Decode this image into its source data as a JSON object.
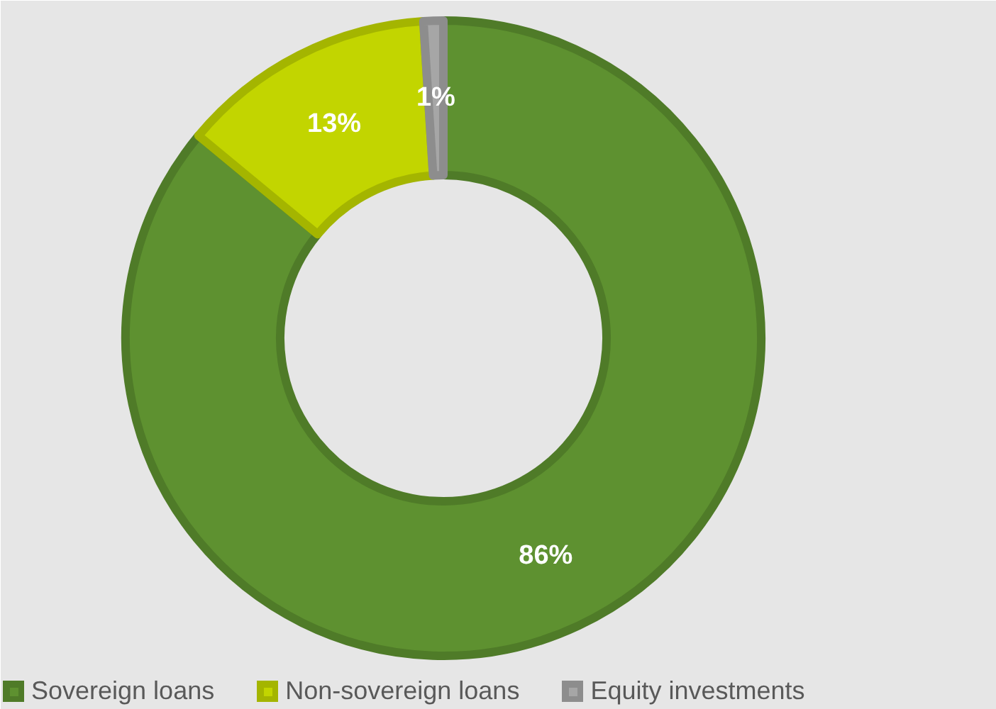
{
  "chart_data": {
    "type": "donut",
    "categories": [
      "Sovereign loans",
      "Non-sovereign loans",
      "Equity investments"
    ],
    "values": [
      86,
      13,
      1
    ],
    "colors": [
      "#5e9130",
      "#c2d500",
      "#a6a6a6"
    ],
    "value_labels": [
      "86%",
      "13%",
      "1%"
    ],
    "legend": "bottom"
  }
}
